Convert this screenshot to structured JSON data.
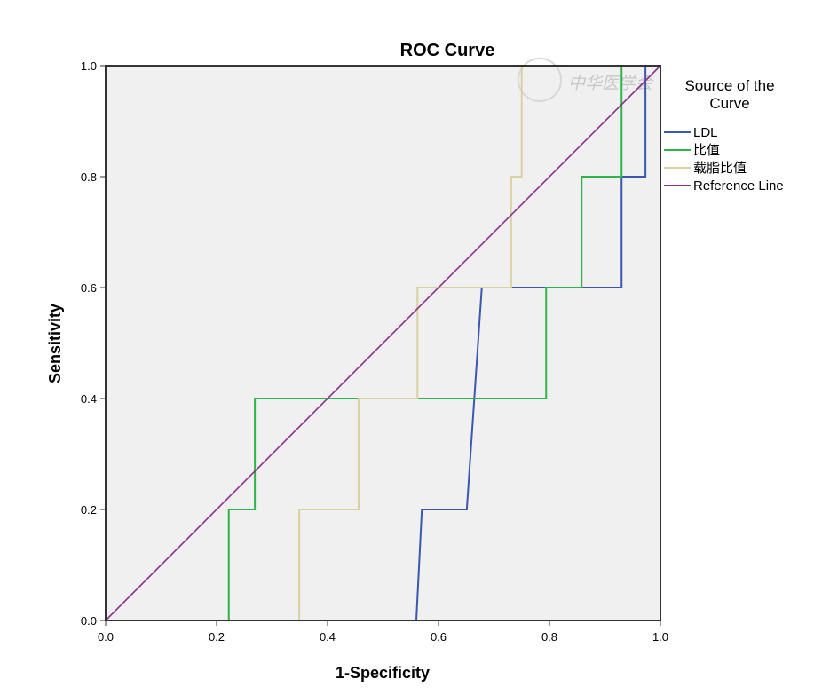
{
  "chart_data": {
    "type": "line",
    "title": "ROC Curve",
    "xlabel": "1-Specificity",
    "ylabel": "Sensitivity",
    "xlim": [
      0,
      1
    ],
    "ylim": [
      0,
      1
    ],
    "xticks": [
      "0.0",
      "0.2",
      "0.4",
      "0.6",
      "0.8",
      "1.0"
    ],
    "yticks": [
      "0.0",
      "0.2",
      "0.4",
      "0.6",
      "0.8",
      "1.0"
    ],
    "grid": false,
    "legend_title": "Source of the Curve",
    "legend_title_lines": [
      "Source of the",
      "Curve"
    ],
    "legend_position": "right",
    "series": [
      {
        "name": "LDL",
        "color": "#3a58b0",
        "points": [
          [
            0,
            0
          ],
          [
            0.56,
            0
          ],
          [
            0.57,
            0.2
          ],
          [
            0.651,
            0.2
          ],
          [
            0.678,
            0.6
          ],
          [
            0.93,
            0.6
          ],
          [
            0.93,
            0.8
          ],
          [
            0.973,
            0.8
          ],
          [
            0.973,
            1.0
          ],
          [
            1,
            1
          ]
        ]
      },
      {
        "name": "比值",
        "color": "#2eb54a",
        "points": [
          [
            0,
            0
          ],
          [
            0.222,
            0
          ],
          [
            0.222,
            0.2
          ],
          [
            0.269,
            0.2
          ],
          [
            0.269,
            0.4
          ],
          [
            0.794,
            0.4
          ],
          [
            0.794,
            0.6
          ],
          [
            0.858,
            0.6
          ],
          [
            0.858,
            0.8
          ],
          [
            0.93,
            0.8
          ],
          [
            0.93,
            1.0
          ],
          [
            1,
            1
          ]
        ]
      },
      {
        "name": "载脂比值",
        "color": "#d9d2a0",
        "points": [
          [
            0,
            0
          ],
          [
            0.349,
            0
          ],
          [
            0.349,
            0.2
          ],
          [
            0.456,
            0.2
          ],
          [
            0.456,
            0.4
          ],
          [
            0.562,
            0.4
          ],
          [
            0.562,
            0.6
          ],
          [
            0.731,
            0.6
          ],
          [
            0.731,
            0.8
          ],
          [
            0.75,
            0.8
          ],
          [
            0.75,
            1.0
          ],
          [
            1,
            1
          ]
        ]
      },
      {
        "name": "Reference Line",
        "color": "#8b2f8b",
        "points": [
          [
            0,
            0
          ],
          [
            1,
            1
          ]
        ]
      }
    ]
  },
  "watermark": "中华医学会"
}
